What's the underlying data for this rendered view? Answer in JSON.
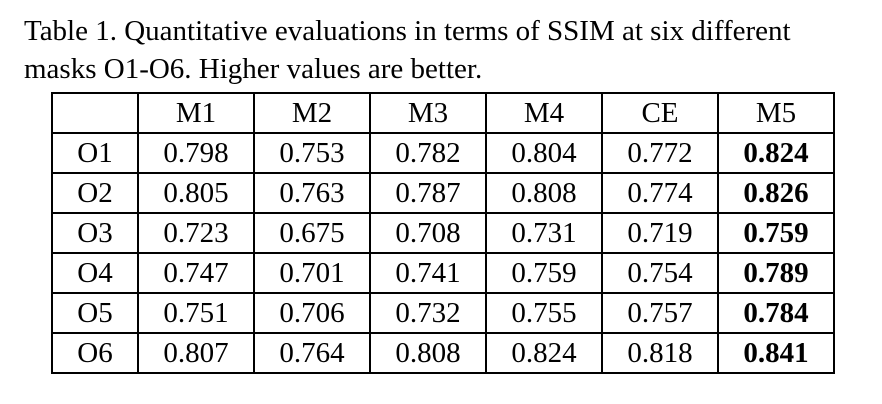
{
  "caption": {
    "line1": "Table 1.  Quantitative evaluations in terms of SSIM at six different",
    "line2": "masks O1-O6. Higher values are better."
  },
  "table": {
    "header": [
      "",
      "M1",
      "M2",
      "M3",
      "M4",
      "CE",
      "M5"
    ],
    "rows": [
      {
        "label": "O1",
        "values": [
          "0.798",
          "0.753",
          "0.782",
          "0.804",
          "0.772",
          "0.824"
        ]
      },
      {
        "label": "O2",
        "values": [
          "0.805",
          "0.763",
          "0.787",
          "0.808",
          "0.774",
          "0.826"
        ]
      },
      {
        "label": "O3",
        "values": [
          "0.723",
          "0.675",
          "0.708",
          "0.731",
          "0.719",
          "0.759"
        ]
      },
      {
        "label": "O4",
        "values": [
          "0.747",
          "0.701",
          "0.741",
          "0.759",
          "0.754",
          "0.789"
        ]
      },
      {
        "label": "O5",
        "values": [
          "0.751",
          "0.706",
          "0.732",
          "0.755",
          "0.757",
          "0.784"
        ]
      },
      {
        "label": "O6",
        "values": [
          "0.807",
          "0.764",
          "0.808",
          "0.824",
          "0.818",
          "0.841"
        ]
      }
    ],
    "bold_column": "M5"
  }
}
